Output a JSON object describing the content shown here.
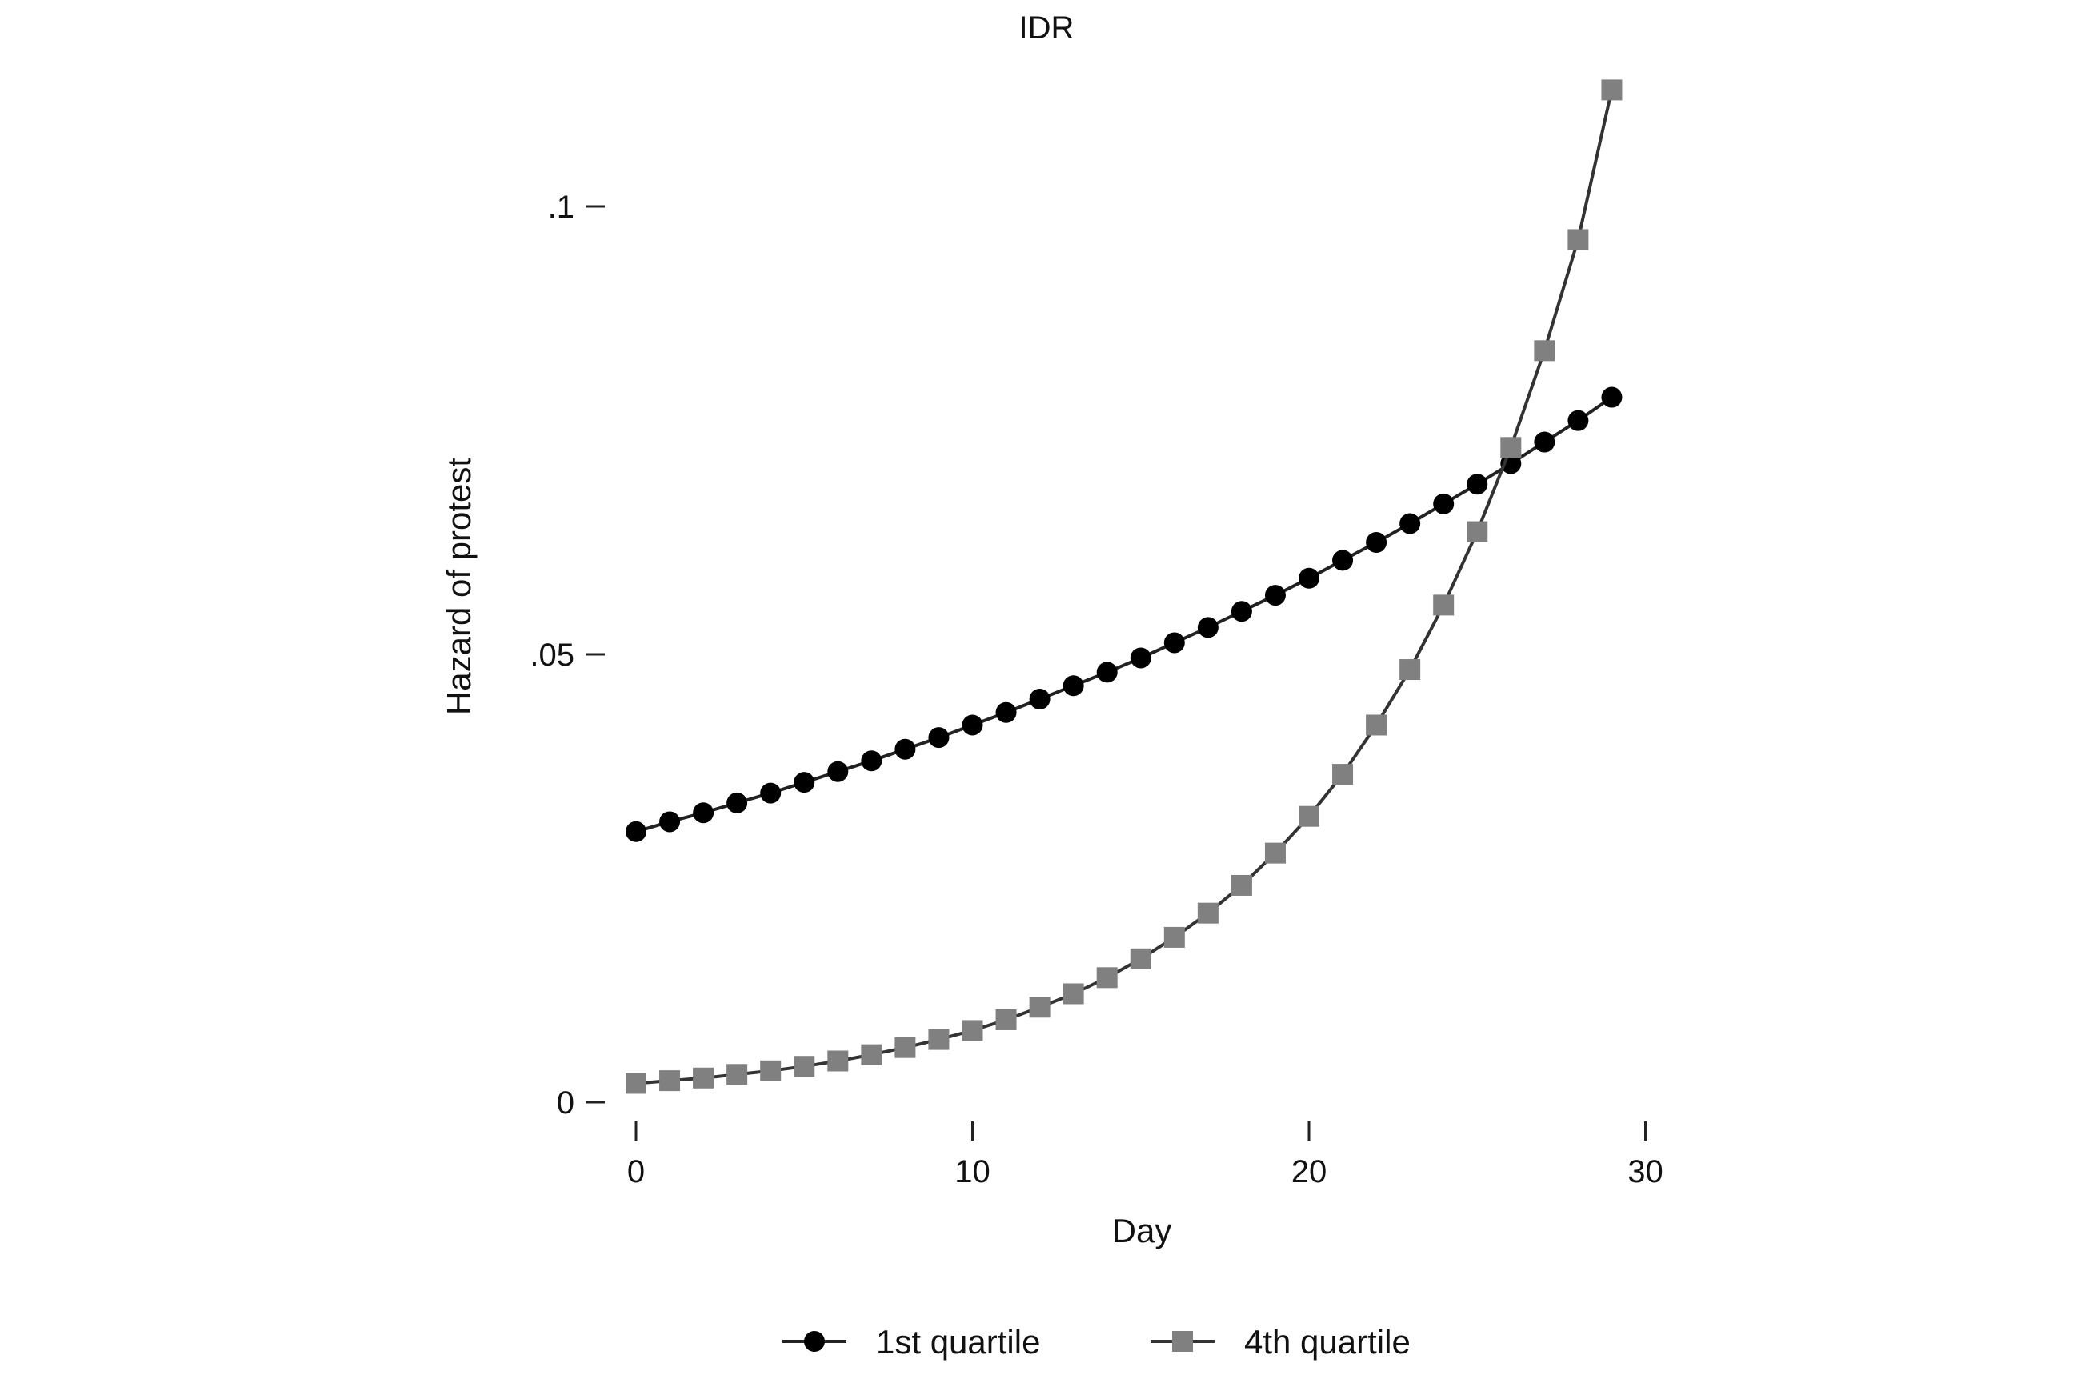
{
  "chart_data": {
    "type": "line",
    "title": "IDR",
    "xlabel": "Day",
    "ylabel": "Hazard of protest",
    "xlim": [
      0,
      30
    ],
    "ylim": [
      0,
      0.1
    ],
    "x_ticks": [
      {
        "value": 0,
        "label": "0"
      },
      {
        "value": 10,
        "label": "10"
      },
      {
        "value": 20,
        "label": "20"
      },
      {
        "value": 30,
        "label": "30"
      }
    ],
    "y_ticks": [
      {
        "value": 0,
        "label": "0"
      },
      {
        "value": 0.05,
        "label": ".05"
      },
      {
        "value": 0.1,
        "label": ".1"
      }
    ],
    "grid": false,
    "legend_placement": "bottom",
    "x": [
      0,
      1,
      2,
      3,
      4,
      5,
      6,
      7,
      8,
      9,
      10,
      11,
      12,
      13,
      14,
      15,
      16,
      17,
      18,
      19,
      20,
      21,
      22,
      23,
      24,
      25,
      26,
      27,
      28,
      29
    ],
    "series": [
      {
        "name": "1st quartile",
        "marker": "circle",
        "color": "#000000",
        "line_color": "#222222",
        "values": [
          0.0302,
          0.0313,
          0.0323,
          0.0334,
          0.0345,
          0.0357,
          0.0369,
          0.0381,
          0.0394,
          0.0407,
          0.0421,
          0.0435,
          0.045,
          0.0465,
          0.048,
          0.0496,
          0.0513,
          0.053,
          0.0548,
          0.0566,
          0.0585,
          0.0605,
          0.0625,
          0.0646,
          0.0668,
          0.069,
          0.0713,
          0.0737,
          0.0761,
          0.0787
        ]
      },
      {
        "name": "4th quartile",
        "marker": "square",
        "color": "#808080",
        "line_color": "#333333",
        "values": [
          0.0021,
          0.0024,
          0.0027,
          0.0031,
          0.0035,
          0.004,
          0.0046,
          0.0053,
          0.0061,
          0.007,
          0.008,
          0.0092,
          0.0106,
          0.0121,
          0.0139,
          0.016,
          0.0184,
          0.0211,
          0.0242,
          0.0278,
          0.0319,
          0.0366,
          0.0421,
          0.0483,
          0.0555,
          0.0637,
          0.0731,
          0.0839,
          0.0963,
          0.113
        ]
      }
    ]
  }
}
